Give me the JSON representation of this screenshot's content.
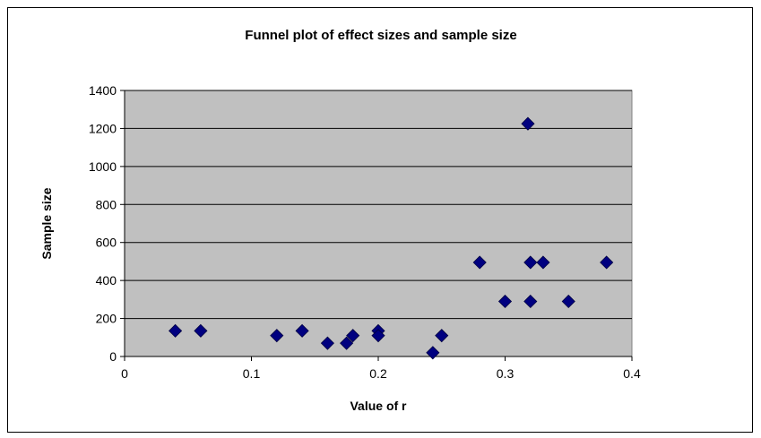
{
  "chart_data": {
    "type": "scatter",
    "title": "Funnel plot of effect sizes and sample size",
    "xlabel": "Value of r",
    "ylabel": "Sample size",
    "xlim": [
      0,
      0.4
    ],
    "ylim": [
      0,
      1400
    ],
    "xticks": [
      0,
      0.1,
      0.2,
      0.3,
      0.4
    ],
    "xtick_labels": [
      "0",
      "0.1",
      "0.2",
      "0.3",
      "0.4"
    ],
    "yticks": [
      0,
      200,
      400,
      600,
      800,
      1000,
      1200,
      1400
    ],
    "ytick_labels": [
      "0",
      "200",
      "400",
      "600",
      "800",
      "1000",
      "1200",
      "1400"
    ],
    "grid": true,
    "legend": "none",
    "colors": {
      "plot_area": "#c0c0c0",
      "marker": "#000080",
      "grid": "#000000"
    },
    "points": [
      {
        "x": 0.04,
        "y": 135
      },
      {
        "x": 0.06,
        "y": 135
      },
      {
        "x": 0.12,
        "y": 110
      },
      {
        "x": 0.14,
        "y": 135
      },
      {
        "x": 0.16,
        "y": 70
      },
      {
        "x": 0.175,
        "y": 70
      },
      {
        "x": 0.18,
        "y": 110
      },
      {
        "x": 0.2,
        "y": 135
      },
      {
        "x": 0.2,
        "y": 110
      },
      {
        "x": 0.243,
        "y": 20
      },
      {
        "x": 0.25,
        "y": 110
      },
      {
        "x": 0.28,
        "y": 495
      },
      {
        "x": 0.3,
        "y": 290
      },
      {
        "x": 0.318,
        "y": 1225
      },
      {
        "x": 0.32,
        "y": 495
      },
      {
        "x": 0.32,
        "y": 290
      },
      {
        "x": 0.33,
        "y": 495
      },
      {
        "x": 0.35,
        "y": 290
      },
      {
        "x": 0.38,
        "y": 495
      }
    ]
  }
}
